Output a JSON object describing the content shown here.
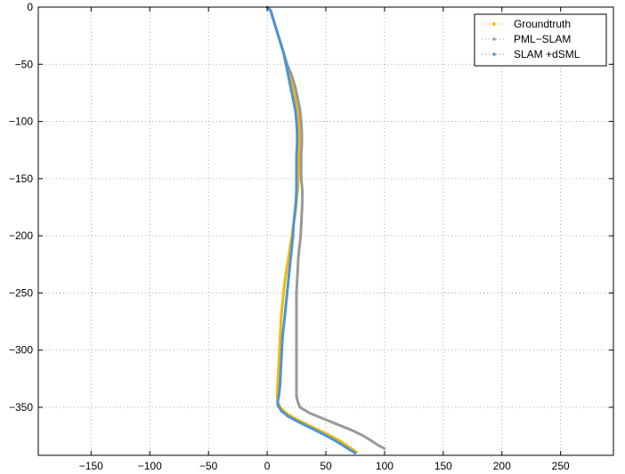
{
  "chart_data": {
    "type": "line",
    "title": "",
    "xlabel": "",
    "ylabel": "",
    "xlim": [
      -195,
      295
    ],
    "ylim": [
      -392,
      0
    ],
    "xticks": [
      -150,
      -100,
      -50,
      0,
      50,
      100,
      150,
      200,
      250
    ],
    "yticks": [
      0,
      -50,
      -100,
      -150,
      -200,
      -250,
      -300,
      -350
    ],
    "xtick_labels": [
      "−150",
      "−100",
      "−50",
      "0",
      "50",
      "100",
      "150",
      "200",
      "250"
    ],
    "ytick_labels": [
      "0",
      "−50",
      "−100",
      "−150",
      "−200",
      "−250",
      "−300",
      "−350"
    ],
    "grid": true,
    "legend_position": "top-right",
    "series": [
      {
        "name": "Groundtruth",
        "color": "#f5b800",
        "points": [
          [
            0,
            0
          ],
          [
            3,
            -3
          ],
          [
            5,
            -10
          ],
          [
            8,
            -20
          ],
          [
            11,
            -30
          ],
          [
            14,
            -40
          ],
          [
            17,
            -50
          ],
          [
            20,
            -60
          ],
          [
            22,
            -70
          ],
          [
            24,
            -80
          ],
          [
            26,
            -90
          ],
          [
            27,
            -100
          ],
          [
            27.5,
            -110
          ],
          [
            27.5,
            -120
          ],
          [
            27,
            -130
          ],
          [
            27,
            -140
          ],
          [
            26.5,
            -150
          ],
          [
            26,
            -160
          ],
          [
            25,
            -170
          ],
          [
            24,
            -180
          ],
          [
            22.5,
            -190
          ],
          [
            21,
            -200
          ],
          [
            19.5,
            -210
          ],
          [
            18,
            -220
          ],
          [
            16.5,
            -230
          ],
          [
            15,
            -240
          ],
          [
            14,
            -250
          ],
          [
            13,
            -260
          ],
          [
            12,
            -270
          ],
          [
            11.5,
            -280
          ],
          [
            11,
            -290
          ],
          [
            10.5,
            -300
          ],
          [
            10,
            -310
          ],
          [
            9.5,
            -320
          ],
          [
            9,
            -330
          ],
          [
            8.5,
            -340
          ],
          [
            9,
            -345
          ],
          [
            11,
            -350
          ],
          [
            16,
            -355
          ],
          [
            24,
            -360
          ],
          [
            34,
            -365
          ],
          [
            44,
            -370
          ],
          [
            54,
            -375
          ],
          [
            63,
            -380
          ],
          [
            70,
            -385
          ],
          [
            76,
            -389
          ]
        ]
      },
      {
        "name": "PML−SLAM",
        "color": "#999999",
        "points": [
          [
            0,
            0
          ],
          [
            3,
            -3
          ],
          [
            5,
            -10
          ],
          [
            8,
            -20
          ],
          [
            11,
            -30
          ],
          [
            14,
            -40
          ],
          [
            17,
            -50
          ],
          [
            21,
            -60
          ],
          [
            24,
            -70
          ],
          [
            26,
            -80
          ],
          [
            28,
            -90
          ],
          [
            29,
            -100
          ],
          [
            29.5,
            -110
          ],
          [
            29.5,
            -120
          ],
          [
            29,
            -130
          ],
          [
            29,
            -140
          ],
          [
            29,
            -150
          ],
          [
            30,
            -160
          ],
          [
            30,
            -170
          ],
          [
            29.5,
            -180
          ],
          [
            29,
            -190
          ],
          [
            28.5,
            -200
          ],
          [
            27.5,
            -210
          ],
          [
            26.5,
            -220
          ],
          [
            26,
            -230
          ],
          [
            25.5,
            -240
          ],
          [
            25,
            -250
          ],
          [
            25,
            -260
          ],
          [
            25,
            -270
          ],
          [
            25,
            -280
          ],
          [
            25,
            -290
          ],
          [
            25,
            -300
          ],
          [
            25,
            -310
          ],
          [
            25,
            -320
          ],
          [
            25,
            -330
          ],
          [
            25,
            -340
          ],
          [
            26,
            -345
          ],
          [
            28,
            -350
          ],
          [
            36,
            -355
          ],
          [
            48,
            -360
          ],
          [
            60,
            -365
          ],
          [
            72,
            -370
          ],
          [
            82,
            -375
          ],
          [
            90,
            -380
          ],
          [
            96,
            -384
          ],
          [
            100,
            -386
          ]
        ]
      },
      {
        "name": "SLAM +dSML",
        "color": "#4d94d6",
        "points": [
          [
            0,
            0
          ],
          [
            3,
            -3
          ],
          [
            5,
            -10
          ],
          [
            8,
            -20
          ],
          [
            11,
            -30
          ],
          [
            14,
            -40
          ],
          [
            16,
            -50
          ],
          [
            18,
            -60
          ],
          [
            20,
            -70
          ],
          [
            22,
            -80
          ],
          [
            24,
            -90
          ],
          [
            25,
            -100
          ],
          [
            25.5,
            -110
          ],
          [
            25.5,
            -120
          ],
          [
            25,
            -130
          ],
          [
            25,
            -140
          ],
          [
            25,
            -150
          ],
          [
            25,
            -160
          ],
          [
            24.5,
            -170
          ],
          [
            23.5,
            -180
          ],
          [
            22.5,
            -190
          ],
          [
            22,
            -200
          ],
          [
            21,
            -210
          ],
          [
            20,
            -220
          ],
          [
            19,
            -230
          ],
          [
            18,
            -240
          ],
          [
            17,
            -250
          ],
          [
            16,
            -260
          ],
          [
            15,
            -270
          ],
          [
            14,
            -280
          ],
          [
            13,
            -290
          ],
          [
            12.5,
            -300
          ],
          [
            12,
            -310
          ],
          [
            11.5,
            -320
          ],
          [
            11,
            -330
          ],
          [
            10,
            -340
          ],
          [
            9,
            -345
          ],
          [
            9,
            -348
          ],
          [
            12,
            -353
          ],
          [
            18,
            -358
          ],
          [
            27,
            -363
          ],
          [
            37,
            -368
          ],
          [
            47,
            -373
          ],
          [
            56,
            -378
          ],
          [
            64,
            -383
          ],
          [
            70,
            -387
          ],
          [
            75,
            -390
          ]
        ]
      }
    ]
  }
}
